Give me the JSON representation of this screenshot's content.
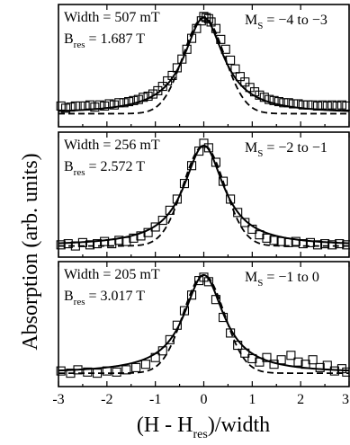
{
  "chart_data": {
    "type": "scatter",
    "xlabel": {
      "main_open": "(H - H",
      "sub": "res",
      "main_close": ")/width"
    },
    "ylabel": "Absorption (arb. units)",
    "xlim": [
      -3,
      3
    ],
    "xticks": [
      "-3",
      "-2",
      "-1",
      "0",
      "1",
      "2",
      "3"
    ],
    "xtick_values": [
      -3,
      -2,
      -1,
      0,
      1,
      2,
      3
    ],
    "panels": [
      {
        "width_label": "Width = 507 mT",
        "bres_main": "B",
        "bres_sub": "res",
        "bres_value": "= 1.687 T",
        "ms_main": "M",
        "ms_sub": "S",
        "ms_value": "= −4 to −3",
        "ylim": [
          0,
          1.12
        ],
        "base": 0.12,
        "fits": [
          {
            "style": "solid",
            "shape": "lorentzian"
          },
          {
            "style": "dashed",
            "shape": "gaussian"
          }
        ],
        "points": [
          [
            -2.95,
            0.19
          ],
          [
            -2.85,
            0.17
          ],
          [
            -2.75,
            0.18
          ],
          [
            -2.65,
            0.19
          ],
          [
            -2.55,
            0.19
          ],
          [
            -2.45,
            0.19
          ],
          [
            -2.35,
            0.2
          ],
          [
            -2.25,
            0.18
          ],
          [
            -2.15,
            0.2
          ],
          [
            -2.05,
            0.19
          ],
          [
            -1.95,
            0.21
          ],
          [
            -1.85,
            0.2
          ],
          [
            -1.75,
            0.22
          ],
          [
            -1.65,
            0.22
          ],
          [
            -1.55,
            0.23
          ],
          [
            -1.45,
            0.24
          ],
          [
            -1.35,
            0.25
          ],
          [
            -1.25,
            0.27
          ],
          [
            -1.15,
            0.28
          ],
          [
            -1.05,
            0.3
          ],
          [
            -0.95,
            0.33
          ],
          [
            -0.85,
            0.37
          ],
          [
            -0.75,
            0.42
          ],
          [
            -0.65,
            0.47
          ],
          [
            -0.55,
            0.54
          ],
          [
            -0.45,
            0.62
          ],
          [
            -0.35,
            0.71
          ],
          [
            -0.25,
            0.81
          ],
          [
            -0.15,
            0.9
          ],
          [
            -0.05,
            0.97
          ],
          [
            0.0,
            1.01
          ],
          [
            0.05,
            1.0
          ],
          [
            0.1,
            0.99
          ],
          [
            0.15,
            0.96
          ],
          [
            0.25,
            0.9
          ],
          [
            0.35,
            0.8
          ],
          [
            0.45,
            0.71
          ],
          [
            0.55,
            0.61
          ],
          [
            0.65,
            0.53
          ],
          [
            0.75,
            0.46
          ],
          [
            0.85,
            0.41
          ],
          [
            0.95,
            0.36
          ],
          [
            1.05,
            0.32
          ],
          [
            1.15,
            0.29
          ],
          [
            1.25,
            0.27
          ],
          [
            1.35,
            0.25
          ],
          [
            1.45,
            0.24
          ],
          [
            1.55,
            0.23
          ],
          [
            1.65,
            0.22
          ],
          [
            1.75,
            0.22
          ],
          [
            1.85,
            0.21
          ],
          [
            1.95,
            0.21
          ],
          [
            2.05,
            0.2
          ],
          [
            2.15,
            0.2
          ],
          [
            2.25,
            0.2
          ],
          [
            2.35,
            0.19
          ],
          [
            2.45,
            0.2
          ],
          [
            2.55,
            0.19
          ],
          [
            2.65,
            0.2
          ],
          [
            2.75,
            0.19
          ],
          [
            2.85,
            0.2
          ],
          [
            2.95,
            0.19
          ]
        ]
      },
      {
        "width_label": "Width = 256 mT",
        "bres_main": "B",
        "bres_sub": "res",
        "bres_value": "= 2.572 T",
        "ms_main": "M",
        "ms_sub": "S",
        "ms_value": "= −2 to −1",
        "ylim": [
          0,
          1.12
        ],
        "base": 0.1,
        "fits": [
          {
            "style": "solid",
            "shape": "lorentzian"
          },
          {
            "style": "dashed",
            "shape": "gaussian"
          }
        ],
        "points": [
          [
            -2.95,
            0.11
          ],
          [
            -2.8,
            0.12
          ],
          [
            -2.65,
            0.1
          ],
          [
            -2.5,
            0.13
          ],
          [
            -2.35,
            0.11
          ],
          [
            -2.2,
            0.12
          ],
          [
            -2.05,
            0.14
          ],
          [
            -1.9,
            0.12
          ],
          [
            -1.75,
            0.15
          ],
          [
            -1.6,
            0.14
          ],
          [
            -1.45,
            0.17
          ],
          [
            -1.3,
            0.19
          ],
          [
            -1.15,
            0.22
          ],
          [
            -1.0,
            0.27
          ],
          [
            -0.85,
            0.33
          ],
          [
            -0.7,
            0.42
          ],
          [
            -0.55,
            0.52
          ],
          [
            -0.4,
            0.66
          ],
          [
            -0.25,
            0.82
          ],
          [
            -0.1,
            0.95
          ],
          [
            0.0,
            1.02
          ],
          [
            0.1,
            0.98
          ],
          [
            0.25,
            0.85
          ],
          [
            0.4,
            0.68
          ],
          [
            0.55,
            0.52
          ],
          [
            0.7,
            0.4
          ],
          [
            0.85,
            0.31
          ],
          [
            1.0,
            0.25
          ],
          [
            1.15,
            0.2
          ],
          [
            1.3,
            0.17
          ],
          [
            1.45,
            0.15
          ],
          [
            1.6,
            0.14
          ],
          [
            1.75,
            0.13
          ],
          [
            1.9,
            0.14
          ],
          [
            2.05,
            0.12
          ],
          [
            2.2,
            0.13
          ],
          [
            2.35,
            0.11
          ],
          [
            2.5,
            0.12
          ],
          [
            2.65,
            0.11
          ],
          [
            2.8,
            0.12
          ],
          [
            2.95,
            0.11
          ]
        ]
      },
      {
        "width_label": "Width = 205 mT",
        "bres_main": "B",
        "bres_sub": "res",
        "bres_value": "= 3.017 T",
        "ms_main": "M",
        "ms_sub": "S",
        "ms_value": "= −1 to 0",
        "ylim": [
          0,
          1.12
        ],
        "base": 0.12,
        "fits": [
          {
            "style": "solid",
            "shape": "lorentzian"
          },
          {
            "style": "dashed",
            "shape": "gaussian"
          }
        ],
        "points": [
          [
            -2.95,
            0.14
          ],
          [
            -2.75,
            0.12
          ],
          [
            -2.6,
            0.15
          ],
          [
            -2.4,
            0.13
          ],
          [
            -2.2,
            0.12
          ],
          [
            -2.0,
            0.14
          ],
          [
            -1.8,
            0.13
          ],
          [
            -1.6,
            0.15
          ],
          [
            -1.4,
            0.17
          ],
          [
            -1.2,
            0.2
          ],
          [
            -1.0,
            0.26
          ],
          [
            -0.85,
            0.32
          ],
          [
            -0.7,
            0.42
          ],
          [
            -0.55,
            0.55
          ],
          [
            -0.4,
            0.68
          ],
          [
            -0.25,
            0.82
          ],
          [
            -0.1,
            0.95
          ],
          [
            0.0,
            0.98
          ],
          [
            0.1,
            0.94
          ],
          [
            0.25,
            0.78
          ],
          [
            0.4,
            0.62
          ],
          [
            0.55,
            0.48
          ],
          [
            0.7,
            0.37
          ],
          [
            0.85,
            0.3
          ],
          [
            1.0,
            0.25
          ],
          [
            1.15,
            0.22
          ],
          [
            1.3,
            0.26
          ],
          [
            1.45,
            0.2
          ],
          [
            1.6,
            0.24
          ],
          [
            1.8,
            0.28
          ],
          [
            1.95,
            0.22
          ],
          [
            2.1,
            0.2
          ],
          [
            2.25,
            0.24
          ],
          [
            2.4,
            0.17
          ],
          [
            2.55,
            0.19
          ],
          [
            2.7,
            0.14
          ],
          [
            2.85,
            0.16
          ],
          [
            2.95,
            0.13
          ]
        ]
      }
    ]
  }
}
